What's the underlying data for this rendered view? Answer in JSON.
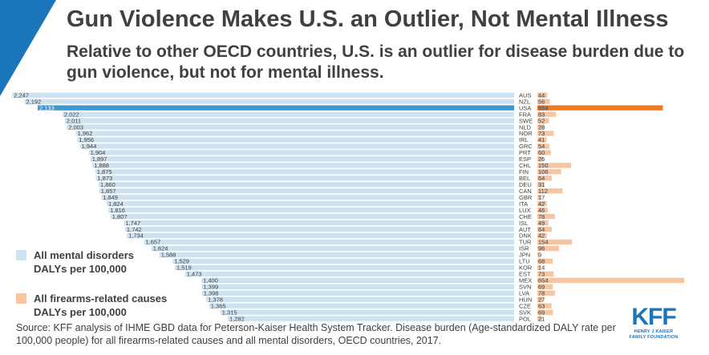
{
  "header": {
    "title": "Gun Violence Makes U.S. an Outlier, Not Mental Illness",
    "subtitle": "Relative to other OECD countries, U.S. is an outlier for disease burden due to gun violence, but not for mental illness."
  },
  "legend": {
    "mental_label": "All mental disorders DALYs per 100,000",
    "firearms_label": "All firearms-related causes DALYs per 100,000"
  },
  "source": "Source: KFF analysis of IHME GBD data for Peterson-Kaiser Health System Tracker. Disease burden (Age-standardized DALY rate per 100,000 people) for all firearms-related causes and all mental disorders, OECD countries, 2017.",
  "logo": {
    "main": "KFF",
    "line1": "HENRY J KAISER",
    "line2": "FAMILY FOUNDATION"
  },
  "colors": {
    "mental": "#cde3f2",
    "mental_highlight": "#3f96d1",
    "firearms": "#f7c59f",
    "firearms_highlight": "#ee7b22",
    "text": "#404040"
  },
  "chart_data": {
    "type": "bar",
    "highlight": "USA",
    "categories": [
      "AUS",
      "NZL",
      "USA",
      "FRA",
      "SWE",
      "NLD",
      "NOR",
      "IRL",
      "GRC",
      "PRT",
      "ESP",
      "CHL",
      "FIN",
      "BEL",
      "DEU",
      "CAN",
      "GBR",
      "ITA",
      "LUX",
      "CHE",
      "ISL",
      "AUT",
      "DNK",
      "TUR",
      "ISR",
      "JPN",
      "LTU",
      "KOR",
      "EST",
      "MEX",
      "SVN",
      "LVA",
      "HUN",
      "CZE",
      "SVK",
      "POL"
    ],
    "series": [
      {
        "name": "All mental disorders DALYs per 100,000",
        "values": [
          2247,
          2192,
          2133,
          2022,
          2011,
          2003,
          1962,
          1956,
          1944,
          1904,
          1897,
          1888,
          1875,
          1873,
          1860,
          1857,
          1849,
          1824,
          1816,
          1807,
          1747,
          1742,
          1734,
          1657,
          1624,
          1588,
          1529,
          1519,
          1473,
          1400,
          1399,
          1398,
          1378,
          1365,
          1315,
          1282
        ]
      },
      {
        "name": "All firearms-related causes DALYs per 100,000",
        "values": [
          44,
          56,
          559,
          83,
          52,
          28,
          73,
          41,
          54,
          60,
          26,
          150,
          106,
          64,
          31,
          112,
          17,
          42,
          46,
          78,
          49,
          64,
          42,
          154,
          96,
          9,
          68,
          14,
          73,
          654,
          69,
          78,
          27,
          63,
          69,
          21
        ]
      }
    ]
  }
}
